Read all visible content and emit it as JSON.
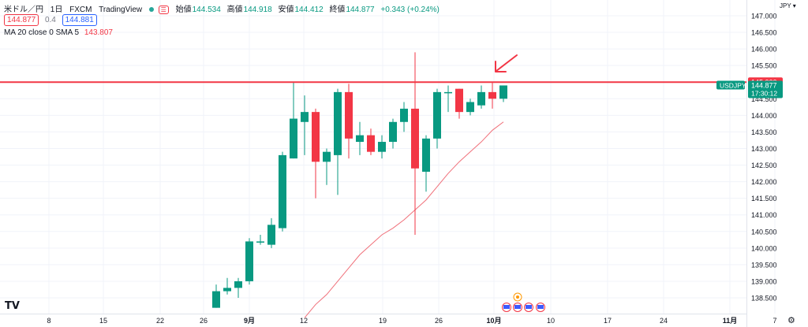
{
  "header": {
    "symbol_name": "米ドル／円",
    "interval": "1日",
    "exchange": "FXCM",
    "source": "TradingView",
    "open_label": "始値",
    "open": "144.534",
    "high_label": "高値",
    "high": "144.918",
    "low_label": "安値",
    "low": "144.412",
    "close_label": "終値",
    "close": "144.877",
    "change": "+0.343 (+0.24%)",
    "sell_price": "144.877",
    "spread": "0.4",
    "buy_price": "144.881",
    "ma_indicator": "MA 20 close 0 SMA 5",
    "ma_value": "143.807"
  },
  "axis": {
    "currency": "JPY",
    "y_ticks": [
      "147.000",
      "146.500",
      "146.000",
      "145.500",
      "145.000",
      "144.500",
      "144.000",
      "143.500",
      "143.000",
      "142.500",
      "142.000",
      "141.500",
      "141.000",
      "140.500",
      "140.000",
      "139.500",
      "139.000",
      "138.500"
    ],
    "x_ticks": [
      "8",
      "15",
      "22",
      "26",
      "9月",
      "12",
      "19",
      "26",
      "10月",
      "10",
      "17",
      "24",
      "11月",
      "7"
    ],
    "ylim": [
      138.2,
      147.2
    ]
  },
  "price_label": {
    "symbol": "USDJPY",
    "price": "144.877",
    "countdown": "17:30:12",
    "line_level": "145.000"
  },
  "colors": {
    "up": "#089981",
    "down": "#f23645",
    "ma": "#f0707a",
    "hline": "#f23645",
    "arrow": "#f23645"
  },
  "chart_data": {
    "type": "candlestick",
    "y_unit": "JPY",
    "candles": [
      {
        "date": "2022-08-29",
        "open": 138.2,
        "high": 138.9,
        "low": 138.2,
        "close": 138.7
      },
      {
        "date": "2022-08-30",
        "open": 138.7,
        "high": 139.1,
        "low": 138.6,
        "close": 138.8
      },
      {
        "date": "2022-08-31",
        "open": 138.8,
        "high": 139.1,
        "low": 138.5,
        "close": 139.0
      },
      {
        "date": "2022-09-01",
        "open": 139.0,
        "high": 140.3,
        "low": 138.9,
        "close": 140.2
      },
      {
        "date": "2022-09-02",
        "open": 140.2,
        "high": 140.4,
        "low": 140.1,
        "close": 140.2
      },
      {
        "date": "2022-09-05",
        "open": 140.1,
        "high": 140.9,
        "low": 140.0,
        "close": 140.7
      },
      {
        "date": "2022-09-06",
        "open": 140.6,
        "high": 142.9,
        "low": 140.5,
        "close": 142.8
      },
      {
        "date": "2022-09-07",
        "open": 142.7,
        "high": 145.0,
        "low": 142.7,
        "close": 143.9
      },
      {
        "date": "2022-09-08",
        "open": 143.8,
        "high": 144.6,
        "low": 142.8,
        "close": 144.1
      },
      {
        "date": "2022-09-09",
        "open": 144.1,
        "high": 144.2,
        "low": 141.5,
        "close": 142.6
      },
      {
        "date": "2022-09-12",
        "open": 142.6,
        "high": 143.0,
        "low": 141.9,
        "close": 142.9
      },
      {
        "date": "2022-09-13",
        "open": 142.8,
        "high": 144.8,
        "low": 141.6,
        "close": 144.7
      },
      {
        "date": "2022-09-14",
        "open": 144.7,
        "high": 144.95,
        "low": 142.7,
        "close": 143.3
      },
      {
        "date": "2022-09-15",
        "open": 143.2,
        "high": 143.8,
        "low": 142.8,
        "close": 143.4
      },
      {
        "date": "2022-09-16",
        "open": 143.4,
        "high": 143.6,
        "low": 142.8,
        "close": 142.9
      },
      {
        "date": "2022-09-19",
        "open": 142.9,
        "high": 143.4,
        "low": 142.7,
        "close": 143.2
      },
      {
        "date": "2022-09-20",
        "open": 143.2,
        "high": 143.9,
        "low": 143.0,
        "close": 143.8
      },
      {
        "date": "2022-09-21",
        "open": 143.8,
        "high": 144.4,
        "low": 143.5,
        "close": 144.2
      },
      {
        "date": "2022-09-22",
        "open": 144.2,
        "high": 145.9,
        "low": 140.4,
        "close": 142.4
      },
      {
        "date": "2022-09-23",
        "open": 142.3,
        "high": 143.4,
        "low": 141.7,
        "close": 143.3
      },
      {
        "date": "2022-09-26",
        "open": 143.3,
        "high": 144.8,
        "low": 143.0,
        "close": 144.7
      },
      {
        "date": "2022-09-27",
        "open": 144.7,
        "high": 144.9,
        "low": 144.1,
        "close": 144.7
      },
      {
        "date": "2022-09-28",
        "open": 144.8,
        "high": 144.8,
        "low": 143.9,
        "close": 144.1
      },
      {
        "date": "2022-09-29",
        "open": 144.1,
        "high": 144.5,
        "low": 144.0,
        "close": 144.4
      },
      {
        "date": "2022-09-30",
        "open": 144.3,
        "high": 144.9,
        "low": 144.2,
        "close": 144.7
      },
      {
        "date": "2022-10-03",
        "open": 144.7,
        "high": 145.0,
        "low": 144.2,
        "close": 144.5
      },
      {
        "date": "2022-10-04",
        "open": 144.5,
        "high": 144.9,
        "low": 144.4,
        "close": 144.9
      }
    ],
    "ma": {
      "name": "MA 20 close 0 SMA 5",
      "values": [
        {
          "date": "2022-09-09",
          "value": 138.3
        },
        {
          "date": "2022-09-12",
          "value": 138.6
        },
        {
          "date": "2022-09-13",
          "value": 139.0
        },
        {
          "date": "2022-09-14",
          "value": 139.4
        },
        {
          "date": "2022-09-15",
          "value": 139.8
        },
        {
          "date": "2022-09-16",
          "value": 140.1
        },
        {
          "date": "2022-09-19",
          "value": 140.4
        },
        {
          "date": "2022-09-20",
          "value": 140.6
        },
        {
          "date": "2022-09-21",
          "value": 140.85
        },
        {
          "date": "2022-09-22",
          "value": 141.15
        },
        {
          "date": "2022-09-23",
          "value": 141.45
        },
        {
          "date": "2022-09-26",
          "value": 141.85
        },
        {
          "date": "2022-09-27",
          "value": 142.25
        },
        {
          "date": "2022-09-28",
          "value": 142.6
        },
        {
          "date": "2022-09-29",
          "value": 142.9
        },
        {
          "date": "2022-09-30",
          "value": 143.2
        },
        {
          "date": "2022-10-03",
          "value": 143.55
        },
        {
          "date": "2022-10-04",
          "value": 143.8
        }
      ]
    },
    "horizontal_line": 145.0,
    "grid": true
  }
}
